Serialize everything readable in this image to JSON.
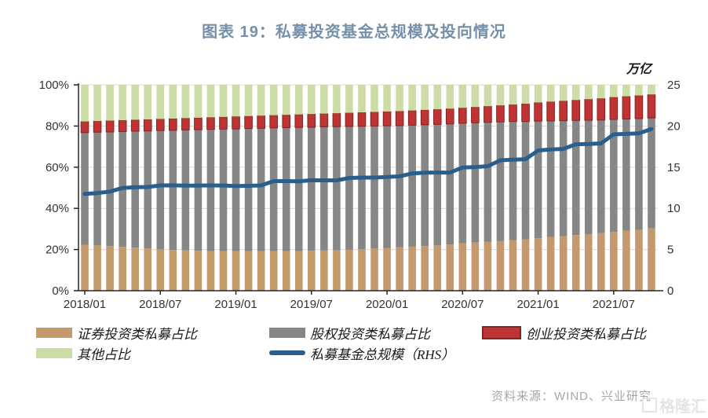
{
  "figure": {
    "title": "图表 19：私募投资基金总规模及投向情况",
    "right_axis_unit": "万亿",
    "source": "资料来源：WIND、兴业研究",
    "watermark": "格隆汇"
  },
  "colors": {
    "title": "#7590AB",
    "securities_bar": "#C49A6C",
    "equity_bar": "#868686",
    "venture_bar": "#BE3434",
    "venture_border": "#8A2222",
    "other_bar": "#CBDCA6",
    "line": "#2A5E8C",
    "grid": "#D9D9D9",
    "axis": "#262626",
    "tick_text": "#333333",
    "source_text": "#A6A6A6",
    "watermark_text": "#E2E2E2"
  },
  "legend": {
    "items": [
      {
        "label": "证券投资类私募占比",
        "swatch": "securities_bar",
        "type": "bar"
      },
      {
        "label": "股权投资类私募占比",
        "swatch": "equity_bar",
        "type": "bar"
      },
      {
        "label": "创业投资类私募占比",
        "swatch": "venture_bar",
        "type": "bar"
      },
      {
        "label": "其他占比",
        "swatch": "other_bar",
        "type": "bar"
      },
      {
        "label": "私募基金总规模（RHS）",
        "swatch": "line",
        "type": "line"
      }
    ]
  },
  "chart_data": {
    "type": "bar",
    "subtype": "100pct-stacked-bars-with-line",
    "title": "图表 19：私募投资基金总规模及投向情况",
    "grid": true,
    "legend_position": "bottom",
    "x": [
      "2018/01",
      "2018/02",
      "2018/03",
      "2018/04",
      "2018/05",
      "2018/06",
      "2018/07",
      "2018/08",
      "2018/09",
      "2018/10",
      "2018/11",
      "2018/12",
      "2019/01",
      "2019/02",
      "2019/03",
      "2019/04",
      "2019/05",
      "2019/06",
      "2019/07",
      "2019/08",
      "2019/09",
      "2019/10",
      "2019/11",
      "2019/12",
      "2020/01",
      "2020/02",
      "2020/03",
      "2020/04",
      "2020/05",
      "2020/06",
      "2020/07",
      "2020/08",
      "2020/09",
      "2020/10",
      "2020/11",
      "2020/12",
      "2021/01",
      "2021/02",
      "2021/03",
      "2021/04",
      "2021/05",
      "2021/06",
      "2021/07",
      "2021/08",
      "2021/09",
      "2021/10"
    ],
    "x_tick_labels": [
      "2018/01",
      "2018/07",
      "2019/01",
      "2019/07",
      "2020/01",
      "2020/07",
      "2021/01",
      "2021/07"
    ],
    "left_axis": {
      "ticks": [
        "0%",
        "20%",
        "40%",
        "60%",
        "80%",
        "100%"
      ],
      "range": [
        0,
        100
      ]
    },
    "right_axis": {
      "ticks": [
        "0",
        "5",
        "10",
        "15",
        "20",
        "25"
      ],
      "range": [
        0,
        25
      ],
      "unit": "万亿"
    },
    "series": [
      {
        "name": "证券投资类私募占比",
        "type": "bar",
        "axis": "left",
        "unit": "%",
        "values": [
          22.2,
          22.0,
          21.7,
          21.3,
          20.9,
          20.5,
          20.1,
          19.8,
          19.6,
          19.4,
          19.3,
          19.2,
          19.2,
          19.3,
          19.3,
          19.2,
          19.2,
          19.3,
          19.4,
          19.5,
          19.7,
          19.9,
          20.2,
          20.5,
          20.8,
          21.1,
          21.4,
          21.7,
          22.0,
          22.4,
          23.0,
          23.4,
          23.7,
          24.1,
          24.5,
          25.0,
          25.5,
          26.0,
          26.5,
          27.0,
          27.5,
          28.0,
          28.6,
          29.1,
          29.6,
          30.3
        ]
      },
      {
        "name": "股权投资类私募占比",
        "type": "bar",
        "axis": "left",
        "unit": "%",
        "values": [
          54.6,
          55.0,
          55.4,
          56.0,
          56.6,
          57.1,
          57.7,
          58.1,
          58.5,
          58.8,
          59.1,
          59.3,
          59.4,
          59.5,
          59.6,
          59.9,
          60.0,
          60.0,
          60.0,
          60.1,
          60.0,
          59.9,
          59.7,
          59.5,
          59.3,
          59.1,
          59.0,
          58.9,
          58.8,
          58.6,
          58.3,
          58.2,
          58.1,
          57.9,
          57.7,
          57.2,
          56.9,
          56.5,
          56.1,
          55.7,
          55.3,
          54.9,
          54.6,
          54.3,
          54.0,
          53.6
        ]
      },
      {
        "name": "创业投资类私募占比",
        "type": "bar",
        "axis": "left",
        "unit": "%",
        "values": [
          5.4,
          5.4,
          5.5,
          5.5,
          5.5,
          5.6,
          5.6,
          5.7,
          5.7,
          5.8,
          5.8,
          5.9,
          6.0,
          6.0,
          6.1,
          6.1,
          6.2,
          6.3,
          6.4,
          6.4,
          6.5,
          6.6,
          6.7,
          6.8,
          6.9,
          7.0,
          7.1,
          7.2,
          7.3,
          7.4,
          7.5,
          7.6,
          7.8,
          8.0,
          8.2,
          8.6,
          9.0,
          9.3,
          9.6,
          9.9,
          10.2,
          10.5,
          10.8,
          11.0,
          11.2,
          11.4
        ]
      },
      {
        "name": "其他占比",
        "type": "bar",
        "axis": "left",
        "unit": "%",
        "values": [
          17.8,
          17.6,
          17.4,
          17.2,
          17.0,
          16.8,
          16.6,
          16.4,
          16.2,
          16.0,
          15.8,
          15.6,
          15.4,
          15.2,
          15.0,
          14.8,
          14.6,
          14.4,
          14.2,
          14.0,
          13.8,
          13.6,
          13.4,
          13.2,
          13.0,
          12.8,
          12.5,
          12.2,
          11.9,
          11.6,
          11.2,
          10.8,
          10.4,
          10.0,
          9.6,
          9.2,
          8.6,
          8.2,
          7.8,
          7.4,
          7.0,
          6.6,
          6.0,
          5.6,
          5.2,
          4.7
        ]
      },
      {
        "name": "私募基金总规模（RHS）",
        "type": "line",
        "axis": "right",
        "unit": "万亿",
        "values": [
          11.76,
          11.86,
          12.04,
          12.48,
          12.57,
          12.6,
          12.79,
          12.8,
          12.77,
          12.77,
          12.79,
          12.78,
          12.71,
          12.74,
          12.79,
          13.31,
          13.31,
          13.28,
          13.42,
          13.41,
          13.4,
          13.69,
          13.74,
          13.74,
          13.82,
          13.89,
          14.25,
          14.34,
          14.35,
          14.35,
          14.96,
          15.02,
          15.12,
          15.84,
          15.91,
          15.97,
          17.03,
          17.16,
          17.22,
          17.79,
          17.82,
          17.89,
          18.99,
          19.05,
          19.1,
          19.65
        ]
      }
    ]
  }
}
